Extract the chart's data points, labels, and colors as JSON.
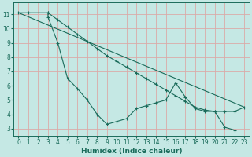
{
  "xlabel": "Humidex (Indice chaleur)",
  "xlim": [
    -0.5,
    23.5
  ],
  "ylim": [
    2.5,
    11.8
  ],
  "background_color": "#c5e8e4",
  "grid_color": "#dbaaa8",
  "line_color": "#1a6b5a",
  "series": [
    {
      "x": [
        0,
        1,
        3,
        3,
        4,
        5,
        6,
        7,
        8,
        9,
        10,
        11,
        12,
        13,
        14,
        15,
        16,
        17,
        18,
        19,
        20,
        21,
        22
      ],
      "y": [
        11.1,
        11.1,
        11.1,
        10.8,
        9.0,
        6.5,
        5.8,
        5.0,
        4.0,
        3.3,
        3.5,
        3.7,
        4.4,
        4.6,
        4.8,
        5.0,
        6.2,
        5.2,
        4.4,
        4.2,
        4.2,
        3.1,
        2.9
      ]
    },
    {
      "x": [
        0,
        23
      ],
      "y": [
        11.1,
        4.5
      ]
    },
    {
      "x": [
        3,
        4,
        5,
        6,
        7,
        8,
        9,
        10,
        11,
        12,
        13,
        14,
        15,
        16,
        17,
        18,
        19,
        20,
        21,
        22,
        23
      ],
      "y": [
        11.1,
        10.6,
        10.1,
        9.6,
        9.1,
        8.6,
        8.1,
        7.7,
        7.3,
        6.9,
        6.5,
        6.1,
        5.7,
        5.3,
        4.9,
        4.5,
        4.3,
        4.2,
        4.2,
        4.2,
        4.5
      ]
    }
  ],
  "xticks": [
    0,
    1,
    2,
    3,
    4,
    5,
    6,
    7,
    8,
    9,
    10,
    11,
    12,
    13,
    14,
    15,
    16,
    17,
    18,
    19,
    20,
    21,
    22,
    23
  ],
  "yticks": [
    3,
    4,
    5,
    6,
    7,
    8,
    9,
    10,
    11
  ],
  "tick_fontsize": 5.5,
  "xlabel_fontsize": 6.5
}
